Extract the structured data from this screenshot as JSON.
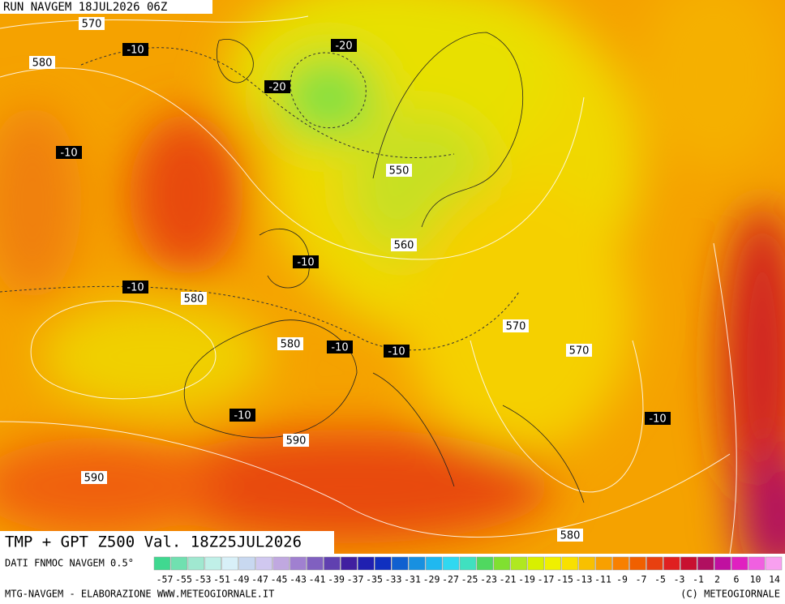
{
  "header": {
    "run": "RUN NAVGEM 18JUL2026 06Z"
  },
  "map_labels": [
    "570",
    "-10",
    "-20",
    "580",
    "-20",
    "-10",
    "550",
    "560",
    "-10",
    "-10",
    "580",
    "580",
    "-10",
    "-10",
    "570",
    "570",
    "-10",
    "-10",
    "590",
    "590",
    "580"
  ],
  "title": "TMP + GPT Z500 Val. 18Z25JUL2026",
  "legend": {
    "source": "DATI FNMOC NAVGEM 0.5°",
    "labels": [
      -57,
      -55,
      -53,
      -51,
      -49,
      -47,
      -45,
      -43,
      -41,
      -39,
      -37,
      -35,
      -33,
      -31,
      -29,
      -27,
      -25,
      -23,
      -21,
      -19,
      -17,
      -15,
      -13,
      -11,
      -9,
      -7,
      -5,
      -3,
      -1,
      2,
      6,
      10,
      14
    ]
  },
  "footer": {
    "left": "MTG-NAVGEM - ELABORAZIONE WWW.METEOGIORNALE.IT",
    "right": "(C) METEOGIORNALE"
  }
}
